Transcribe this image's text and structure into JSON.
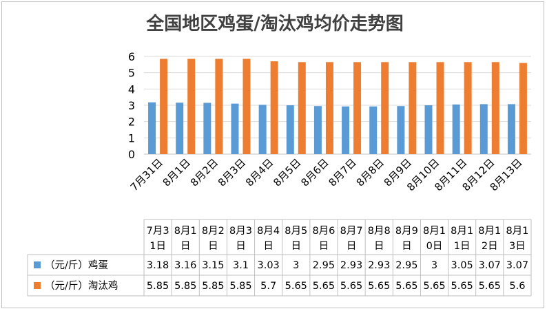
{
  "chart_data": {
    "type": "bar",
    "title": "全国地区鸡蛋/淘汰鸡均价走势图",
    "categories": [
      "7月31日",
      "8月1日",
      "8月2日",
      "8月3日",
      "8月4日",
      "8月5日",
      "8月6日",
      "8月7日",
      "8月8日",
      "8月9日",
      "8月10日",
      "8月11日",
      "8月12日",
      "8月13日"
    ],
    "table_headers": [
      [
        "7月3",
        "1日"
      ],
      [
        "8月1",
        "日"
      ],
      [
        "8月2",
        "日"
      ],
      [
        "8月3",
        "日"
      ],
      [
        "8月4",
        "日"
      ],
      [
        "8月5",
        "日"
      ],
      [
        "8月6",
        "日"
      ],
      [
        "8月7",
        "日"
      ],
      [
        "8月8",
        "日"
      ],
      [
        "8月9",
        "日"
      ],
      [
        "8月1",
        "0日"
      ],
      [
        "8月1",
        "1日"
      ],
      [
        "8月1",
        "2日"
      ],
      [
        "8月1",
        "3日"
      ]
    ],
    "series": [
      {
        "name": "（元/斤）鸡蛋",
        "color": "#5B9BD5",
        "values": [
          3.18,
          3.16,
          3.15,
          3.1,
          3.03,
          3,
          2.95,
          2.93,
          2.93,
          2.95,
          3,
          3.05,
          3.07,
          3.07
        ]
      },
      {
        "name": "（元/斤）淘汰鸡",
        "color": "#ED7D31",
        "values": [
          5.85,
          5.85,
          5.85,
          5.85,
          5.7,
          5.65,
          5.65,
          5.65,
          5.65,
          5.65,
          5.65,
          5.65,
          5.65,
          5.6
        ]
      }
    ],
    "y_ticks": [
      "0",
      "1",
      "2",
      "3",
      "4",
      "5",
      "6"
    ],
    "ylim": [
      0,
      6
    ],
    "grid": true,
    "legend": "data-table"
  }
}
